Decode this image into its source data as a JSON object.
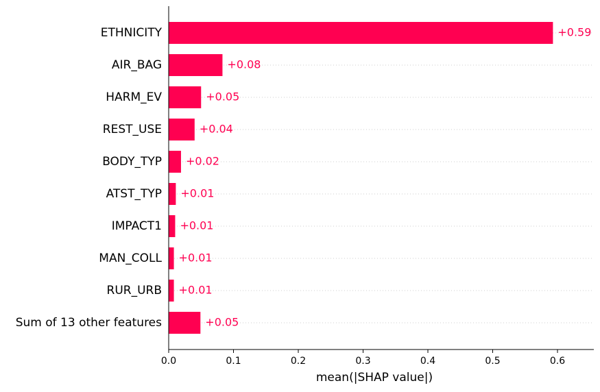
{
  "chart_data": {
    "type": "bar",
    "orientation": "horizontal",
    "categories": [
      "ETHNICITY",
      "AIR_BAG",
      "HARM_EV",
      "REST_USE",
      "BODY_TYP",
      "ATST_TYP",
      "IMPACT1",
      "MAN_COLL",
      "RUR_URB",
      "Sum of 13 other features"
    ],
    "values": [
      0.593,
      0.083,
      0.05,
      0.04,
      0.019,
      0.011,
      0.01,
      0.008,
      0.008,
      0.049
    ],
    "data_labels": [
      "+0.59",
      "+0.08",
      "+0.05",
      "+0.04",
      "+0.02",
      "+0.01",
      "+0.01",
      "+0.01",
      "+0.01",
      "+0.05"
    ],
    "title": "",
    "xlabel": "mean(|SHAP value|)",
    "ylabel": "",
    "xlim": [
      0,
      0.653
    ],
    "xticks": [
      0.0,
      0.1,
      0.2,
      0.3,
      0.4,
      0.5,
      0.6
    ],
    "xtick_labels": [
      "0.0",
      "0.1",
      "0.2",
      "0.3",
      "0.4",
      "0.5",
      "0.6"
    ],
    "grid": "dotted horizontal guide lines per row",
    "legend": "none",
    "bar_color": "#ff0051",
    "label_color": "#ff0051",
    "guide_color": "#cccccc",
    "axis_color": "#000000"
  }
}
